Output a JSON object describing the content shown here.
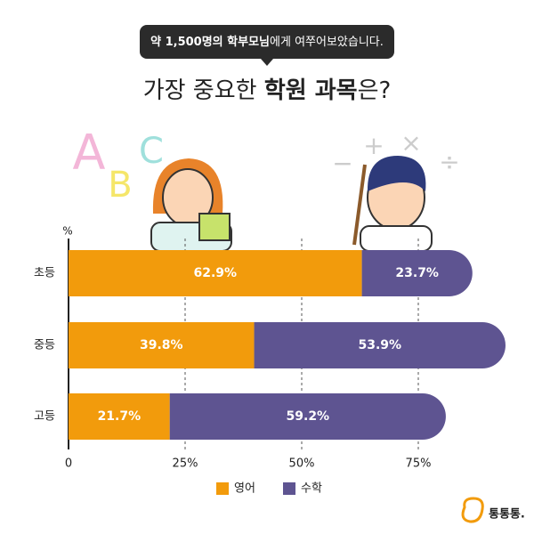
{
  "chart_data": {
    "type": "stacked_barh",
    "subtitle": [
      "약 1,500명의 학부모님",
      "에게 여쭈어보았습니다."
    ],
    "title": [
      "가장 중요한 ",
      "학원 과목",
      "은?"
    ],
    "value_axis_label": "%",
    "categories": [
      "초등",
      "중등",
      "고등"
    ],
    "series": [
      {
        "name": "영어",
        "color": "#f29b0c",
        "values": [
          62.9,
          39.8,
          21.7
        ],
        "value_labels": [
          "62.9%",
          "39.8%",
          "21.7%"
        ]
      },
      {
        "name": "수학",
        "color": "#5e5491",
        "values": [
          23.7,
          53.9,
          59.2
        ],
        "value_labels": [
          "23.7%",
          "53.9%",
          "59.2%"
        ]
      }
    ],
    "xlim": [
      0,
      100
    ],
    "xticks": [
      0,
      {
        "value": 25,
        "label": "25%"
      },
      {
        "value": 50,
        "label": "50%"
      },
      {
        "value": 75,
        "label": "75%"
      }
    ],
    "grid": true,
    "legend": "bottom",
    "decor_letters": [
      "A",
      "B",
      "C"
    ],
    "decor_symbols": [
      "−",
      "+",
      "×",
      "÷"
    ],
    "logo": "통통통."
  }
}
